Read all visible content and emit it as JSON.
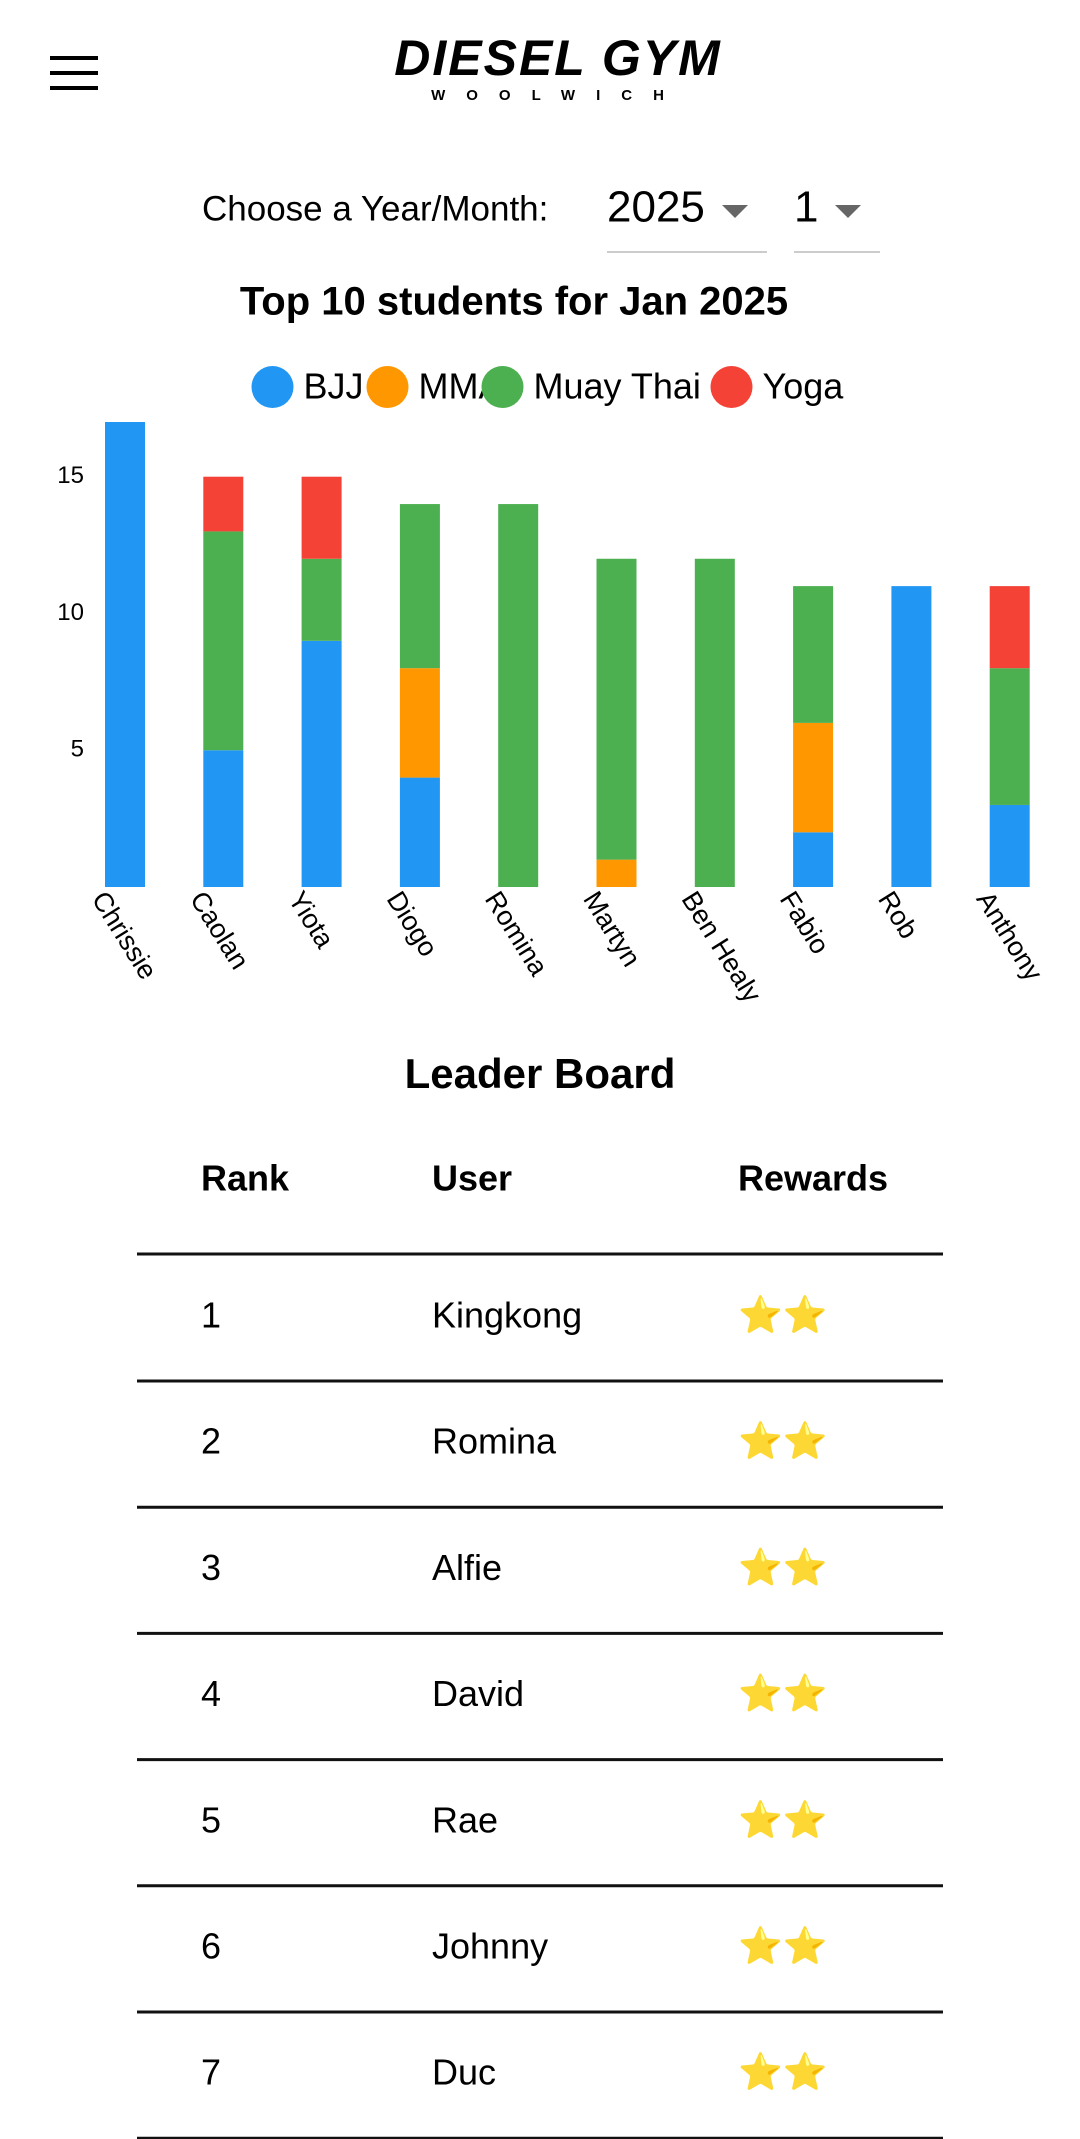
{
  "header": {
    "title": "DIESEL GYM",
    "subtitle": "WOOLWICH"
  },
  "selector": {
    "label": "Choose a Year/Month:",
    "year": "2025",
    "month": "1"
  },
  "chart_data": {
    "type": "stacked-bar",
    "title": "Top 10 students for Jan 2025",
    "categories": [
      "Chrissie",
      "Caolan",
      "Yiota",
      "Diogo",
      "Romina",
      "Martyn",
      "Ben Healy",
      "Fabio",
      "Rob",
      "Anthony"
    ],
    "series": [
      {
        "name": "BJJ",
        "color": "#2196f3",
        "values": [
          17,
          5,
          9,
          4,
          0,
          0,
          0,
          2,
          11,
          3
        ]
      },
      {
        "name": "MMA",
        "color": "#ff9800",
        "values": [
          0,
          0,
          0,
          4,
          0,
          1,
          0,
          4,
          0,
          0
        ]
      },
      {
        "name": "Muay Thai",
        "color": "#4caf50",
        "values": [
          0,
          8,
          3,
          6,
          14,
          11,
          12,
          5,
          0,
          5
        ]
      },
      {
        "name": "Yoga",
        "color": "#f44336",
        "values": [
          0,
          2,
          3,
          0,
          0,
          0,
          0,
          0,
          0,
          3
        ]
      }
    ],
    "ylim": [
      0,
      17
    ],
    "yticks": [
      5,
      10,
      15
    ],
    "legend": "top"
  },
  "leaderboard": {
    "title": "Leader Board",
    "columns": [
      "Rank",
      "User",
      "Rewards"
    ],
    "rows": [
      [
        "1",
        "Kingkong",
        "⭐⭐"
      ],
      [
        "2",
        "Romina",
        "⭐⭐"
      ],
      [
        "3",
        "Alfie",
        "⭐⭐"
      ],
      [
        "4",
        "David",
        "⭐⭐"
      ],
      [
        "5",
        "Rae",
        "⭐⭐"
      ],
      [
        "6",
        "Johnny",
        "⭐⭐"
      ],
      [
        "7",
        "Duc",
        "⭐⭐"
      ]
    ]
  }
}
